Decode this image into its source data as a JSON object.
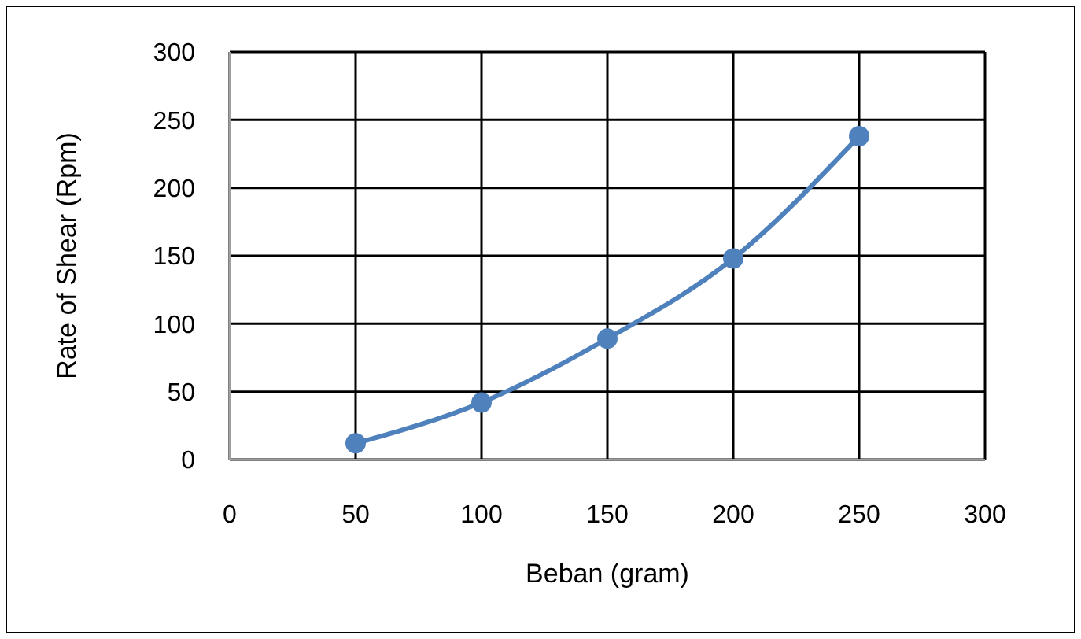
{
  "chart_data": {
    "type": "line",
    "xlabel": "Beban (gram)",
    "ylabel": "Rate of Shear (Rpm)",
    "x": [
      50,
      100,
      150,
      200,
      250
    ],
    "series": [
      {
        "color": "#4f81bd",
        "values": [
          12,
          42,
          89,
          148,
          238
        ]
      }
    ],
    "xlim": [
      0,
      300
    ],
    "xticks": [
      0,
      50,
      100,
      150,
      200,
      250,
      300
    ],
    "ylim": [
      0,
      300
    ],
    "yticks": [
      0,
      50,
      100,
      150,
      200,
      250,
      300
    ],
    "grid": true,
    "marker": "circle",
    "line_style": "solid"
  }
}
